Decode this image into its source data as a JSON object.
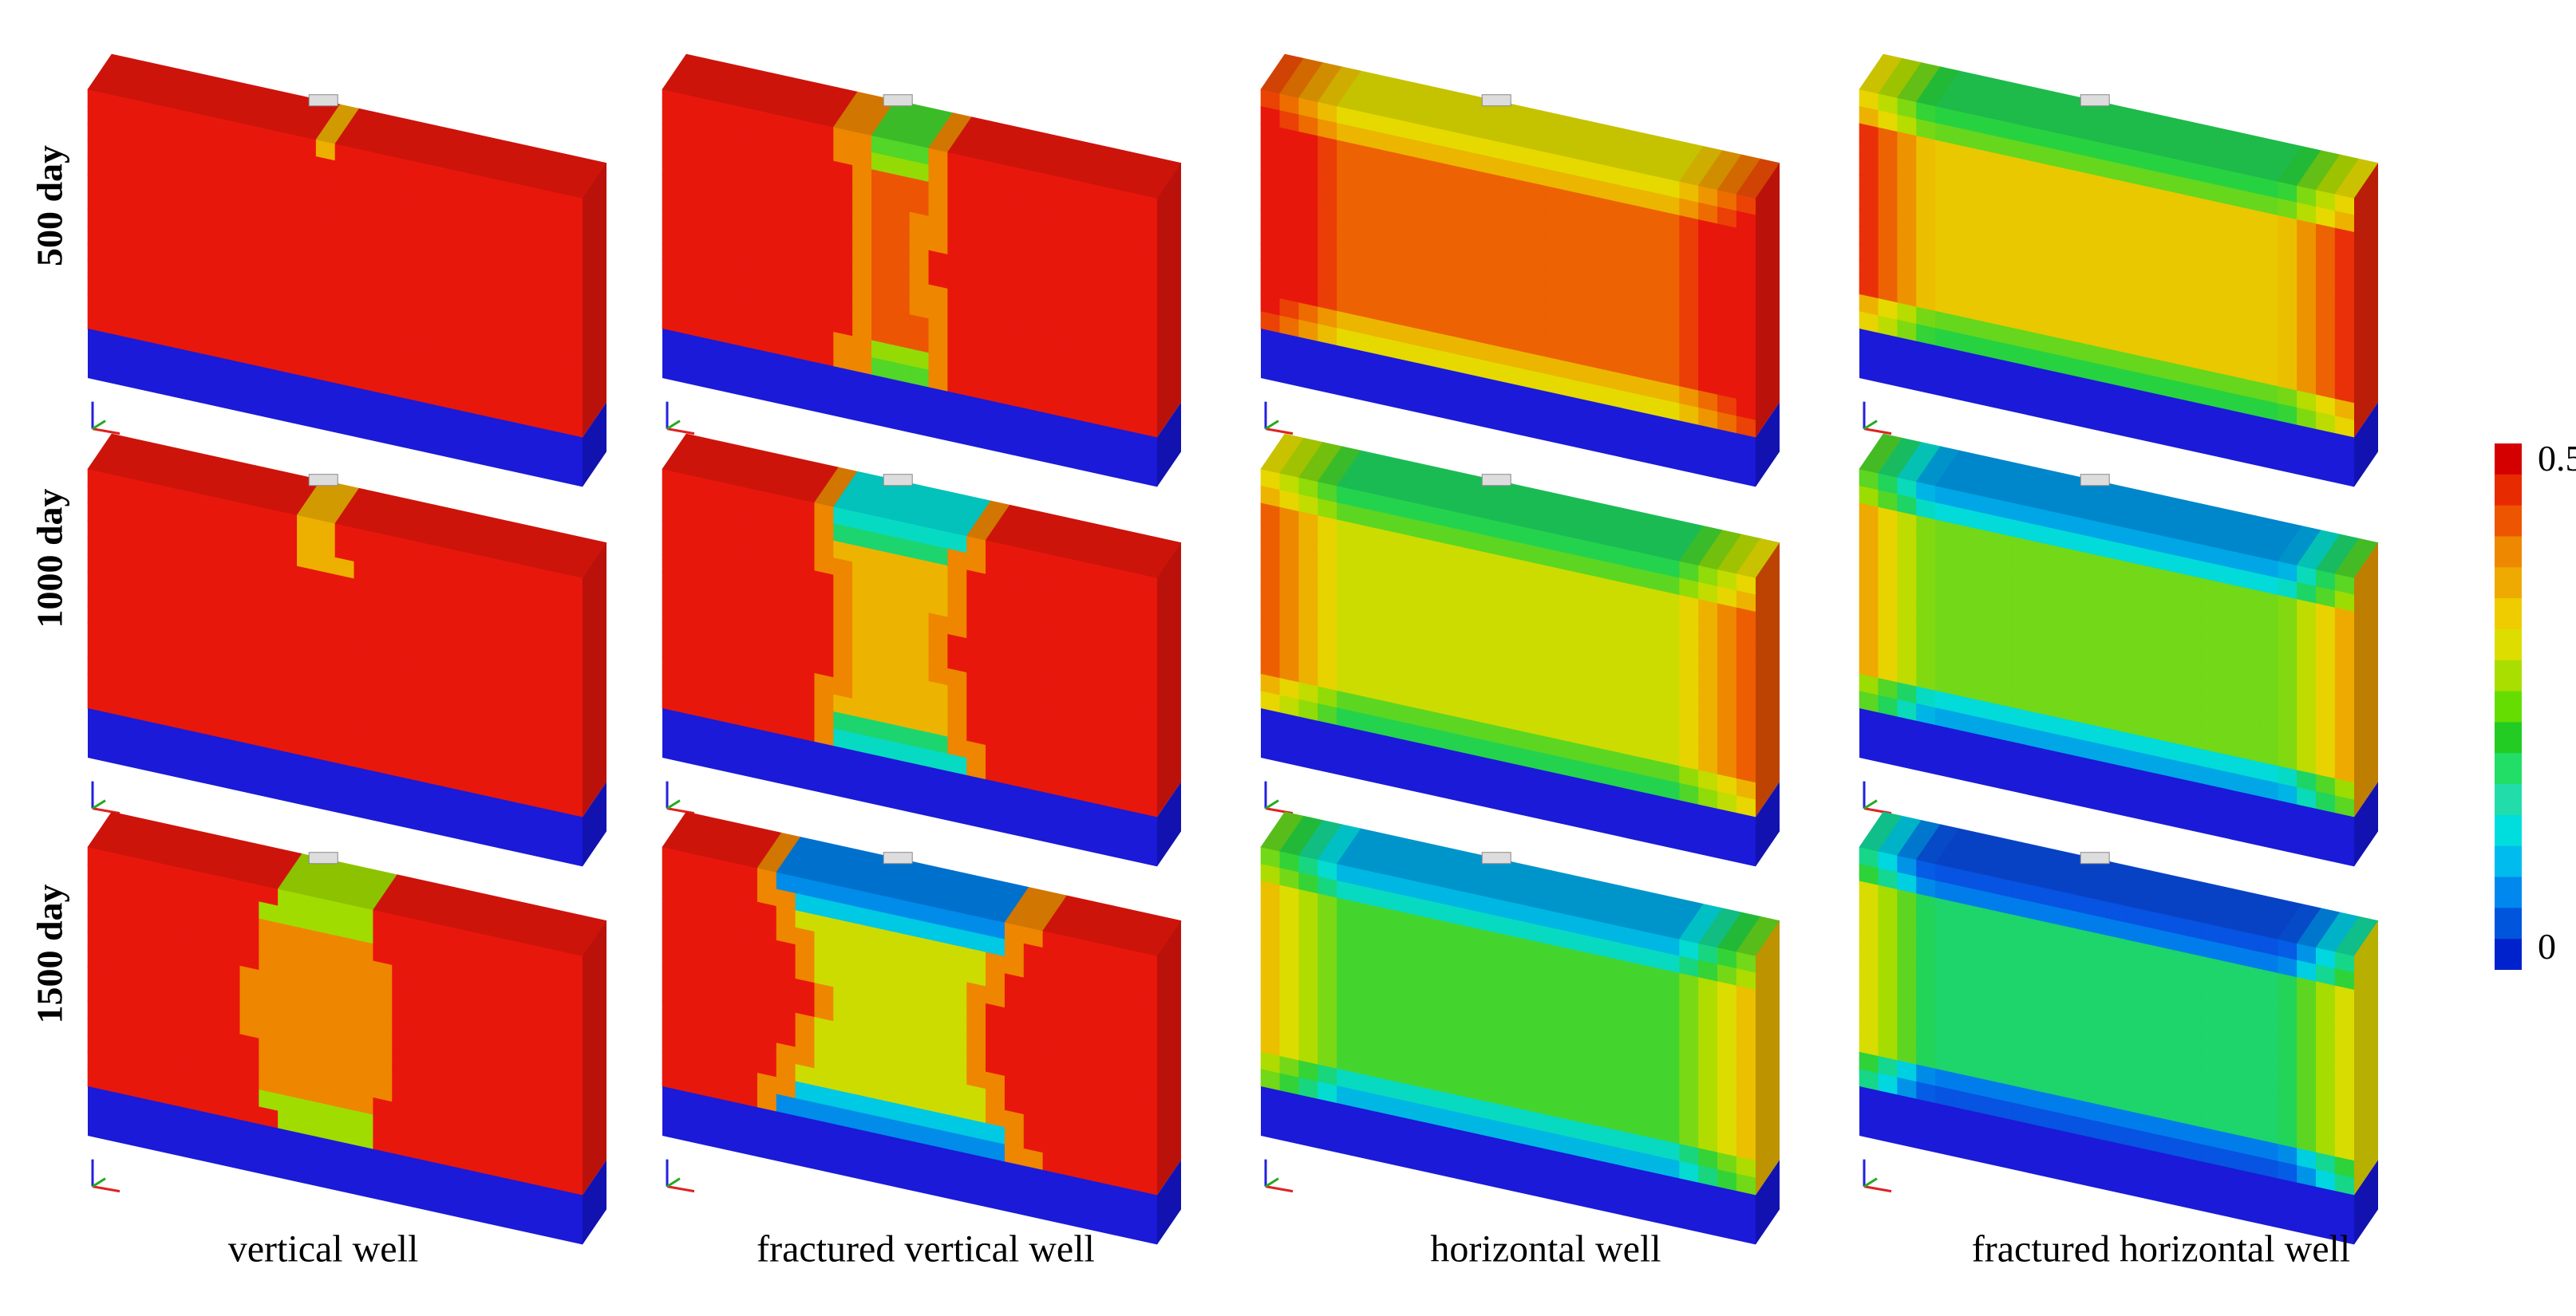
{
  "rows": [
    {
      "label": "500 day"
    },
    {
      "label": "1000 day"
    },
    {
      "label": "1500 day"
    }
  ],
  "columns": [
    {
      "label": "vertical well"
    },
    {
      "label": "fractured vertical well"
    },
    {
      "label": "horizontal well"
    },
    {
      "label": "fractured horizontal well"
    }
  ],
  "colorbar": {
    "max_label": "0.5",
    "min_label": "0",
    "colors": [
      "#d40000",
      "#e82a00",
      "#ee5500",
      "#ee8800",
      "#eeaa00",
      "#eecc00",
      "#dddd00",
      "#aadd00",
      "#66dd00",
      "#22cc22",
      "#22dd66",
      "#22ddaa",
      "#00dddd",
      "#00bbee",
      "#0088ee",
      "#0055dd",
      "#0022cc"
    ]
  },
  "palette": {
    "reservoir": "#e8170c",
    "base_layer": "#1a1ad8",
    "accent_axis_x": "#dd2222",
    "accent_axis_y": "#22aa22",
    "accent_axis_z": "#2222dd"
  }
}
